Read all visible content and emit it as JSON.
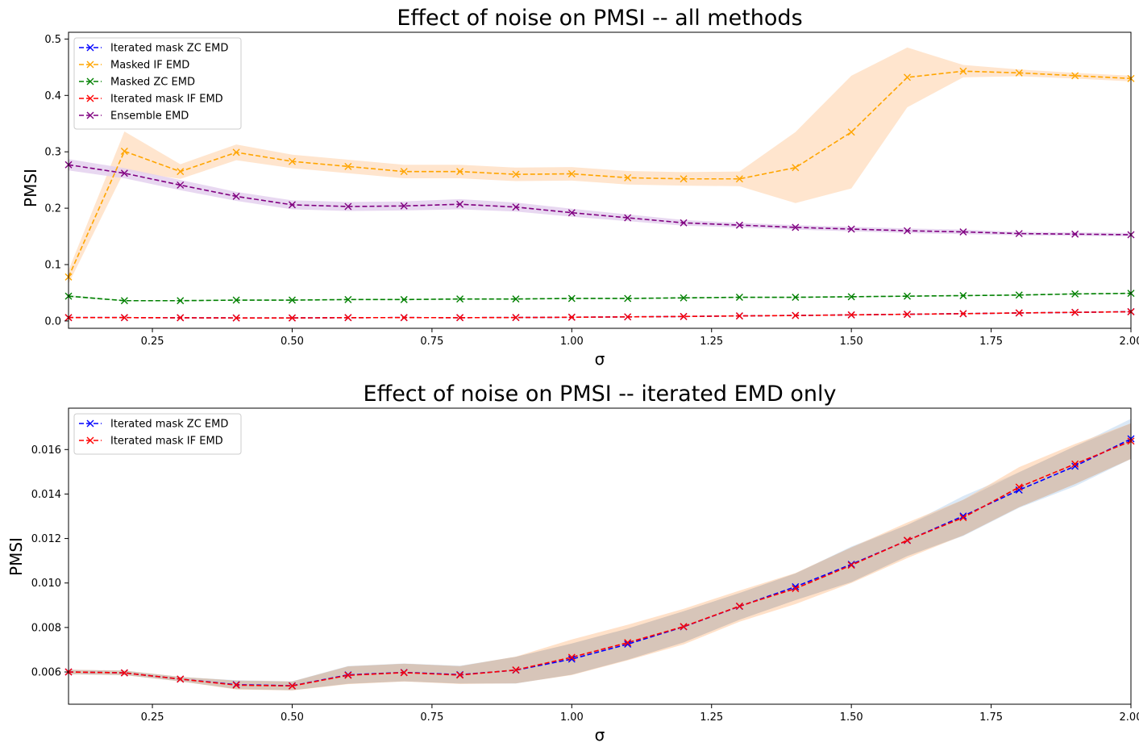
{
  "chart_data": [
    {
      "type": "line",
      "title": "Effect of noise on PMSI -- all methods",
      "xlabel": "σ",
      "ylabel": "PMSI",
      "xlim": [
        0.1,
        2.0
      ],
      "ylim": [
        -0.013,
        0.512
      ],
      "xticks": [
        0.25,
        0.5,
        0.75,
        1.0,
        1.25,
        1.5,
        1.75,
        2.0
      ],
      "xtick_labels": [
        "0.25",
        "0.50",
        "0.75",
        "1.00",
        "1.25",
        "1.50",
        "1.75",
        "2.00"
      ],
      "yticks": [
        0.0,
        0.1,
        0.2,
        0.3,
        0.4,
        0.5
      ],
      "ytick_labels": [
        "0.0",
        "0.1",
        "0.2",
        "0.3",
        "0.4",
        "0.5"
      ],
      "legend_position": "top-left",
      "grid": false,
      "x": [
        0.1,
        0.2,
        0.3,
        0.4,
        0.5,
        0.6,
        0.7,
        0.8,
        0.9,
        1.0,
        1.1,
        1.2,
        1.3,
        1.4,
        1.5,
        1.6,
        1.7,
        1.8,
        1.9,
        2.0
      ],
      "series": [
        {
          "name": "Iterated mask ZC EMD",
          "color": "#0000ff",
          "band_color": "#cfe2f3",
          "values": [
            0.006,
            0.006,
            0.0057,
            0.0054,
            0.0054,
            0.0059,
            0.006,
            0.0059,
            0.0061,
            0.0066,
            0.0073,
            0.008,
            0.009,
            0.0098,
            0.0108,
            0.0119,
            0.013,
            0.0142,
            0.0153,
            0.0165
          ],
          "band": [
            0.0003,
            0.0003,
            0.0002,
            0.0003,
            0.0003,
            0.0004,
            0.0004,
            0.0004,
            0.0005,
            0.0006,
            0.0007,
            0.0007,
            0.0007,
            0.0007,
            0.0008,
            0.0008,
            0.0008,
            0.0008,
            0.0009,
            0.0009
          ]
        },
        {
          "name": "Masked IF EMD",
          "color": "#ffa500",
          "band_color": "#ffe1c6",
          "values": [
            0.078,
            0.301,
            0.265,
            0.299,
            0.283,
            0.274,
            0.265,
            0.265,
            0.26,
            0.261,
            0.254,
            0.252,
            0.252,
            0.272,
            0.335,
            0.432,
            0.443,
            0.44,
            0.435,
            0.43
          ],
          "band": [
            0.012,
            0.035,
            0.013,
            0.014,
            0.012,
            0.012,
            0.012,
            0.012,
            0.012,
            0.012,
            0.012,
            0.012,
            0.013,
            0.063,
            0.1,
            0.053,
            0.011,
            0.006,
            0.005,
            0.005
          ]
        },
        {
          "name": "Masked ZC EMD",
          "color": "#008000",
          "band_color": "#d9ecd9",
          "values": [
            0.044,
            0.036,
            0.036,
            0.037,
            0.037,
            0.038,
            0.038,
            0.039,
            0.039,
            0.04,
            0.04,
            0.041,
            0.042,
            0.042,
            0.043,
            0.044,
            0.045,
            0.046,
            0.048,
            0.049
          ],
          "band": [
            0.002,
            0.001,
            0.001,
            0.001,
            0.001,
            0.001,
            0.001,
            0.001,
            0.001,
            0.001,
            0.001,
            0.001,
            0.001,
            0.001,
            0.001,
            0.001,
            0.001,
            0.001,
            0.001,
            0.001
          ]
        },
        {
          "name": "Iterated mask IF EMD",
          "color": "#ff0000",
          "band_color": "#f6caca",
          "values": [
            0.006,
            0.006,
            0.0057,
            0.0054,
            0.0054,
            0.0059,
            0.006,
            0.0059,
            0.0061,
            0.0066,
            0.0073,
            0.008,
            0.009,
            0.0097,
            0.0108,
            0.0119,
            0.0129,
            0.0143,
            0.0153,
            0.0164
          ],
          "band": [
            0.0003,
            0.0003,
            0.0002,
            0.0003,
            0.0003,
            0.0005,
            0.0004,
            0.0004,
            0.0006,
            0.0007,
            0.0007,
            0.0008,
            0.0007,
            0.0007,
            0.0008,
            0.0007,
            0.0008,
            0.0009,
            0.0009,
            0.0009
          ]
        },
        {
          "name": "Ensemble EMD",
          "color": "#800080",
          "band_color": "#e4d1ee",
          "values": [
            0.277,
            0.262,
            0.241,
            0.221,
            0.206,
            0.203,
            0.204,
            0.207,
            0.202,
            0.192,
            0.183,
            0.174,
            0.17,
            0.166,
            0.163,
            0.16,
            0.158,
            0.155,
            0.154,
            0.153
          ],
          "band": [
            0.01,
            0.009,
            0.009,
            0.008,
            0.008,
            0.008,
            0.008,
            0.009,
            0.008,
            0.007,
            0.006,
            0.005,
            0.004,
            0.004,
            0.004,
            0.004,
            0.004,
            0.003,
            0.003,
            0.003
          ]
        }
      ]
    },
    {
      "type": "line",
      "title": "Effect of noise on PMSI -- iterated EMD only",
      "xlabel": "σ",
      "ylabel": "PMSI",
      "xlim": [
        0.1,
        2.0
      ],
      "ylim": [
        0.00455,
        0.01786
      ],
      "xticks": [
        0.25,
        0.5,
        0.75,
        1.0,
        1.25,
        1.5,
        1.75,
        2.0
      ],
      "xtick_labels": [
        "0.25",
        "0.50",
        "0.75",
        "1.00",
        "1.25",
        "1.50",
        "1.75",
        "2.00"
      ],
      "yticks": [
        0.006,
        0.008,
        0.01,
        0.012,
        0.014,
        0.016
      ],
      "ytick_labels": [
        "0.006",
        "0.008",
        "0.010",
        "0.012",
        "0.014",
        "0.016"
      ],
      "legend_position": "top-left",
      "grid": false,
      "x": [
        0.1,
        0.2,
        0.3,
        0.4,
        0.5,
        0.6,
        0.7,
        0.8,
        0.9,
        1.0,
        1.1,
        1.2,
        1.3,
        1.4,
        1.5,
        1.6,
        1.7,
        1.8,
        1.9,
        2.0
      ],
      "series": [
        {
          "name": "Iterated mask ZC EMD",
          "color": "#0000ff",
          "band_color": "#bcd6ee",
          "values": [
            0.006,
            0.00596,
            0.00568,
            0.00543,
            0.00538,
            0.00587,
            0.00598,
            0.00588,
            0.00608,
            0.00658,
            0.00725,
            0.00803,
            0.00895,
            0.00983,
            0.01084,
            0.01191,
            0.01301,
            0.01418,
            0.01525,
            0.01648
          ],
          "band": [
            0.0001,
            0.0001,
            0.0001,
            0.0002,
            0.0002,
            0.0004,
            0.0004,
            0.0004,
            0.0006,
            0.0007,
            0.0007,
            0.0007,
            0.0006,
            0.0006,
            0.0008,
            0.0007,
            0.0009,
            0.0008,
            0.0009,
            0.0009
          ]
        },
        {
          "name": "Iterated mask IF EMD",
          "color": "#ff0000",
          "band_color": "#ffc99c",
          "values": [
            0.006,
            0.00596,
            0.00568,
            0.00541,
            0.00537,
            0.00585,
            0.00597,
            0.00586,
            0.00609,
            0.00666,
            0.00732,
            0.00804,
            0.00896,
            0.00975,
            0.0108,
            0.01192,
            0.01294,
            0.01431,
            0.01535,
            0.01638
          ],
          "band": [
            0.0001,
            0.0001,
            0.0001,
            0.0002,
            0.0002,
            0.0004,
            0.0004,
            0.0004,
            0.0006,
            0.0008,
            0.0008,
            0.0008,
            0.0007,
            0.0007,
            0.0008,
            0.0008,
            0.0008,
            0.0009,
            0.0009,
            0.0008
          ]
        }
      ]
    }
  ]
}
